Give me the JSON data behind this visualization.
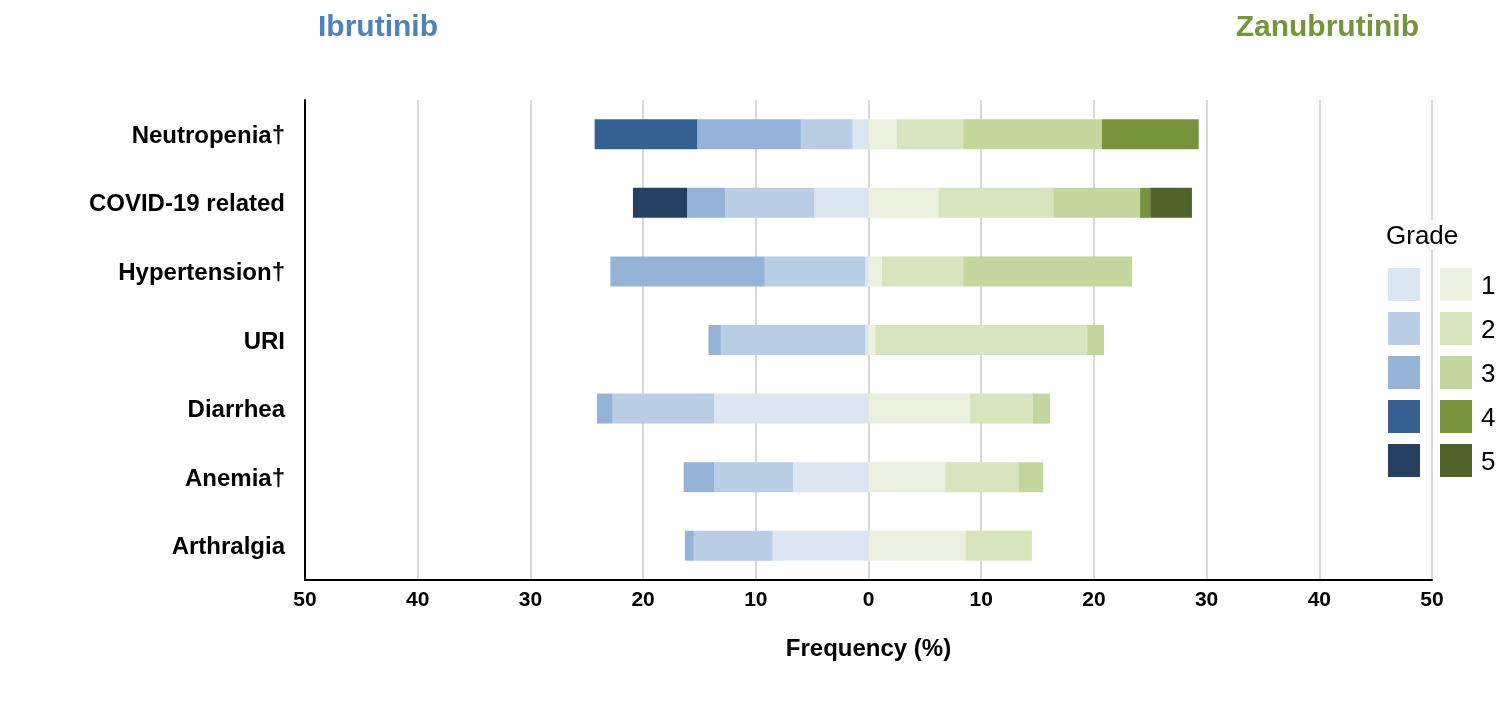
{
  "chart_data": {
    "type": "bar",
    "orientation": "horizontal",
    "stacked": true,
    "xlabel": "Frequency (%)",
    "legend_title": "Grade",
    "legend": "right",
    "annotations": [
      "Ibrutinib",
      "Zanubrutinib"
    ],
    "categories": [
      "Neutropenia†",
      "COVID-19 related",
      "Hypertension†",
      "URI",
      "Diarrhea",
      "Anemia†",
      "Arthralgia"
    ],
    "xlim": [
      -50,
      50
    ],
    "xticks": [
      {
        "value": -50,
        "label": "50"
      },
      {
        "value": -40,
        "label": "40"
      },
      {
        "value": -30,
        "label": "30"
      },
      {
        "value": -20,
        "label": "20"
      },
      {
        "value": -10,
        "label": "10"
      },
      0,
      10,
      20,
      30,
      40,
      50
    ],
    "grid": "x",
    "series": [
      {
        "color": "#dce6f2",
        "values": [
          -1.4,
          -4.8,
          -0.3,
          -0.3,
          -13.7,
          -6.7,
          -8.5
        ]
      },
      {
        "color": "#b9cde5",
        "values": [
          -4.6,
          -7.9,
          -8.9,
          -12.8,
          -9.0,
          -7.0,
          -7.0
        ]
      },
      {
        "color": "#95b3d7",
        "values": [
          -9.2,
          -3.4,
          -13.7,
          -1.1,
          -1.4,
          -2.7,
          -0.8
        ]
      },
      {
        "color": "#366092",
        "values": [
          -9.1,
          null,
          null,
          null,
          null,
          null,
          null
        ]
      },
      {
        "color": "#254061",
        "values": [
          null,
          -4.8,
          null,
          null,
          null,
          null,
          null
        ]
      },
      {
        "name": "1",
        "color": "#ebf1de",
        "values": [
          2.5,
          6.2,
          1.2,
          0.6,
          9.0,
          6.8,
          8.6
        ]
      },
      {
        "name": "2",
        "color": "#d7e4bd",
        "values": [
          5.9,
          10.2,
          7.2,
          18.8,
          5.6,
          6.5,
          5.9
        ]
      },
      {
        "name": "3",
        "color": "#c3d69b",
        "values": [
          12.3,
          7.7,
          15.0,
          1.5,
          1.5,
          2.2,
          null
        ]
      },
      {
        "name": "4",
        "color": "#77933c",
        "values": [
          8.6,
          0.9,
          null,
          null,
          null,
          null,
          null
        ]
      },
      {
        "name": "5",
        "color": "#4f6228",
        "values": [
          null,
          3.7,
          null,
          null,
          null,
          null,
          null
        ]
      }
    ]
  }
}
